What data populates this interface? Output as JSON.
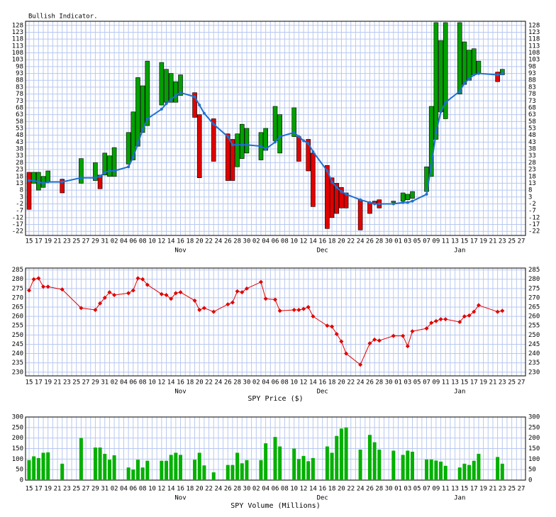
{
  "chart_data": [
    {
      "type": "candlestick",
      "title": "Bullish Indicator.",
      "categories": [
        "15",
        null,
        "17",
        null,
        "19",
        null,
        "21",
        null,
        "23",
        null,
        "25",
        null,
        "27",
        null,
        "29",
        null,
        "31",
        null,
        "02",
        null,
        "04",
        null,
        "06",
        null,
        "08",
        null,
        "10",
        null,
        "12",
        null,
        "14",
        null,
        "16",
        null,
        "18",
        null,
        "20",
        null,
        "22",
        null,
        "24",
        null,
        "26",
        null,
        "28",
        null,
        "30",
        null,
        "02",
        null,
        "04",
        null,
        "06",
        null,
        "08",
        null,
        "10",
        null,
        "12",
        null,
        "14",
        null,
        "16",
        null,
        "18",
        null,
        "20",
        null,
        "22",
        null,
        "24",
        null,
        "26",
        null,
        "28",
        null,
        "30",
        null,
        "01",
        null,
        "03",
        null,
        "05",
        null,
        "07",
        null,
        "09",
        null,
        "11",
        null,
        "13",
        null,
        "15",
        null,
        "17",
        null,
        "19",
        null,
        "21",
        null,
        "23",
        null,
        "25",
        null,
        "27"
      ],
      "months": [
        null,
        null,
        null,
        null,
        null,
        null,
        null,
        null,
        null,
        null,
        null,
        null,
        null,
        null,
        null,
        null,
        null,
        null,
        null,
        null,
        null,
        null,
        null,
        null,
        null,
        null,
        null,
        null,
        null,
        null,
        null,
        null,
        "Nov",
        null,
        null,
        null,
        null,
        null,
        null,
        null,
        null,
        null,
        null,
        null,
        null,
        null,
        null,
        null,
        null,
        null,
        null,
        null,
        null,
        null,
        null,
        null,
        null,
        null,
        null,
        null,
        null,
        null,
        "Dec",
        null,
        null,
        null,
        null,
        null,
        null,
        null,
        null,
        null,
        null,
        null,
        null,
        null,
        null,
        null,
        null,
        null,
        null,
        null,
        null,
        null,
        null,
        null,
        null,
        null,
        null,
        null,
        null,
        "Jan",
        null,
        null,
        null,
        null,
        null,
        null,
        null,
        null,
        null,
        null,
        null
      ],
      "open": [
        21,
        13,
        8,
        10,
        14,
        null,
        null,
        16,
        null,
        null,
        null,
        13,
        null,
        null,
        15,
        19,
        19,
        18,
        18,
        null,
        null,
        27,
        30,
        40,
        50,
        55,
        null,
        null,
        70,
        72,
        72,
        72,
        77,
        null,
        null,
        79,
        63,
        null,
        null,
        60,
        null,
        null,
        49,
        45,
        25,
        31,
        35,
        null,
        null,
        30,
        37,
        null,
        44,
        35,
        null,
        null,
        47,
        47,
        null,
        45,
        35,
        null,
        null,
        26,
        17,
        13,
        10,
        6,
        null,
        null,
        1,
        null,
        -1,
        0,
        1,
        null,
        null,
        -1,
        null,
        0,
        1,
        2,
        null,
        null,
        7,
        18,
        45,
        65,
        60,
        null,
        null,
        78,
        85,
        88,
        92,
        93,
        null,
        null,
        null,
        94,
        92,
        null,
        null,
        null,
        null
      ],
      "close": [
        -6,
        21,
        21,
        18,
        22,
        null,
        null,
        6,
        null,
        null,
        null,
        31,
        null,
        null,
        28,
        9,
        35,
        33,
        39,
        null,
        null,
        50,
        65,
        90,
        84,
        102,
        null,
        null,
        101,
        96,
        93,
        87,
        92,
        null,
        null,
        61,
        17,
        null,
        null,
        29,
        null,
        null,
        15,
        15,
        49,
        56,
        53,
        null,
        null,
        50,
        53,
        null,
        69,
        63,
        null,
        null,
        68,
        29,
        null,
        22,
        -4,
        null,
        null,
        -20,
        -12,
        -9,
        -5,
        -5,
        null,
        null,
        -21,
        null,
        -9,
        -2,
        -5,
        null,
        null,
        0,
        null,
        6,
        5,
        7,
        null,
        null,
        25,
        69,
        130,
        117,
        130,
        null,
        null,
        130,
        116,
        110,
        111,
        102,
        null,
        null,
        null,
        87,
        96,
        null,
        null,
        null,
        null
      ],
      "up_color": "#00a000",
      "down_color": "#e00000",
      "line": {
        "color": "#1f6fd0",
        "values": [
          15,
          15,
          14,
          13,
          14,
          null,
          null,
          14,
          null,
          null,
          null,
          17,
          null,
          null,
          17,
          18,
          21,
          22,
          22,
          null,
          null,
          25,
          32,
          42,
          52,
          60,
          null,
          null,
          67,
          71,
          74,
          77,
          79,
          null,
          null,
          76,
          70,
          64,
          null,
          56,
          null,
          null,
          47,
          41,
          41,
          41,
          41,
          null,
          null,
          40,
          38,
          null,
          43,
          47,
          null,
          null,
          50,
          47,
          44,
          42,
          36,
          null,
          null,
          22,
          14,
          10,
          7,
          5,
          null,
          null,
          1,
          null,
          -1,
          -2,
          -2,
          null,
          null,
          -2,
          null,
          -1,
          -1,
          0,
          null,
          null,
          5,
          26,
          50,
          65,
          72,
          null,
          null,
          80,
          86,
          89,
          92,
          93,
          null,
          null,
          null,
          92,
          93,
          null,
          null,
          null,
          null
        ]
      },
      "ylim": [
        -25,
        131
      ],
      "yticks": [
        -22,
        -17,
        -12,
        -7,
        -2,
        3,
        8,
        13,
        18,
        23,
        28,
        33,
        38,
        43,
        48,
        53,
        58,
        63,
        68,
        73,
        78,
        83,
        88,
        93,
        98,
        103,
        108,
        113,
        118,
        123,
        128
      ],
      "grid": true
    },
    {
      "type": "line",
      "x_label": "SPY Price ($)",
      "categories": [
        "15",
        null,
        "17",
        null,
        "19",
        null,
        "21",
        null,
        "23",
        null,
        "25",
        null,
        "27",
        null,
        "29",
        null,
        "31",
        null,
        "02",
        null,
        "04",
        null,
        "06",
        null,
        "08",
        null,
        "10",
        null,
        "12",
        null,
        "14",
        null,
        "16",
        null,
        "18",
        null,
        "20",
        null,
        "22",
        null,
        "24",
        null,
        "26",
        null,
        "28",
        null,
        "30",
        null,
        "02",
        null,
        "04",
        null,
        "06",
        null,
        "08",
        null,
        "10",
        null,
        "12",
        null,
        "14",
        null,
        "16",
        null,
        "18",
        null,
        "20",
        null,
        "22",
        null,
        "24",
        null,
        "26",
        null,
        "28",
        null,
        "30",
        null,
        "01",
        null,
        "03",
        null,
        "05",
        null,
        "07",
        null,
        "09",
        null,
        "11",
        null,
        "13",
        null,
        "15",
        null,
        "17",
        null,
        "19",
        null,
        "21",
        null,
        "23",
        null,
        "25",
        null,
        "27"
      ],
      "months": [
        null,
        null,
        null,
        null,
        null,
        null,
        null,
        null,
        null,
        null,
        null,
        null,
        null,
        null,
        null,
        null,
        null,
        null,
        null,
        null,
        null,
        null,
        null,
        null,
        null,
        null,
        null,
        null,
        null,
        null,
        null,
        null,
        "Nov",
        null,
        null,
        null,
        null,
        null,
        null,
        null,
        null,
        null,
        null,
        null,
        null,
        null,
        null,
        null,
        null,
        null,
        null,
        null,
        null,
        null,
        null,
        null,
        null,
        null,
        null,
        null,
        null,
        null,
        "Dec",
        null,
        null,
        null,
        null,
        null,
        null,
        null,
        null,
        null,
        null,
        null,
        null,
        null,
        null,
        null,
        null,
        null,
        null,
        null,
        null,
        null,
        null,
        null,
        null,
        null,
        null,
        null,
        null,
        "Jan",
        null,
        null,
        null,
        null,
        null,
        null,
        null,
        null,
        null,
        null,
        null
      ],
      "values": [
        274,
        280,
        280.5,
        276,
        276,
        null,
        null,
        274.5,
        null,
        null,
        null,
        264.5,
        null,
        null,
        263.5,
        267,
        270,
        273,
        271.5,
        null,
        null,
        272.5,
        274,
        280.5,
        280,
        277,
        null,
        null,
        272,
        271.5,
        269.5,
        272.5,
        273,
        null,
        null,
        268.5,
        263.5,
        264.5,
        null,
        262.5,
        null,
        null,
        266.5,
        267.5,
        273.5,
        273,
        275,
        null,
        null,
        278.5,
        269.5,
        null,
        269,
        263,
        null,
        null,
        263.5,
        263.5,
        264,
        265,
        260,
        null,
        null,
        255,
        254.5,
        250.5,
        246.5,
        240,
        null,
        null,
        234,
        null,
        245.5,
        247.5,
        247,
        null,
        null,
        249.5,
        null,
        249.5,
        244,
        252,
        null,
        null,
        253.5,
        256.5,
        257.5,
        258.5,
        258.5,
        null,
        null,
        257,
        260,
        260.5,
        262.5,
        266,
        null,
        null,
        null,
        262.5,
        263,
        null,
        null,
        null,
        null
      ],
      "color": "#e00000",
      "ylim": [
        228,
        286
      ],
      "yticks": [
        230,
        235,
        240,
        245,
        250,
        255,
        260,
        265,
        270,
        275,
        280,
        285
      ],
      "grid": true
    },
    {
      "type": "bar",
      "x_label": "SPY Volume (Millions)",
      "categories": [
        "15",
        null,
        "17",
        null,
        "19",
        null,
        "21",
        null,
        "23",
        null,
        "25",
        null,
        "27",
        null,
        "29",
        null,
        "31",
        null,
        "02",
        null,
        "04",
        null,
        "06",
        null,
        "08",
        null,
        "10",
        null,
        "12",
        null,
        "14",
        null,
        "16",
        null,
        "18",
        null,
        "20",
        null,
        "22",
        null,
        "24",
        null,
        "26",
        null,
        "28",
        null,
        "30",
        null,
        "02",
        null,
        "04",
        null,
        "06",
        null,
        "08",
        null,
        "10",
        null,
        "12",
        null,
        "14",
        null,
        "16",
        null,
        "18",
        null,
        "20",
        null,
        "22",
        null,
        "24",
        null,
        "26",
        null,
        "28",
        null,
        "30",
        null,
        "01",
        null,
        "03",
        null,
        "05",
        null,
        "07",
        null,
        "09",
        null,
        "11",
        null,
        "13",
        null,
        "15",
        null,
        "17",
        null,
        "19",
        null,
        "21",
        null,
        "23",
        null,
        "25",
        null,
        "27"
      ],
      "months": [
        null,
        null,
        null,
        null,
        null,
        null,
        null,
        null,
        null,
        null,
        null,
        null,
        null,
        null,
        null,
        null,
        null,
        null,
        null,
        null,
        null,
        null,
        null,
        null,
        null,
        null,
        null,
        null,
        null,
        null,
        null,
        null,
        "Nov",
        null,
        null,
        null,
        null,
        null,
        null,
        null,
        null,
        null,
        null,
        null,
        null,
        null,
        null,
        null,
        null,
        null,
        null,
        null,
        null,
        null,
        null,
        null,
        null,
        null,
        null,
        null,
        null,
        null,
        "Dec",
        null,
        null,
        null,
        null,
        null,
        null,
        null,
        null,
        null,
        null,
        null,
        null,
        null,
        null,
        null,
        null,
        null,
        null,
        null,
        null,
        null,
        null,
        null,
        null,
        null,
        null,
        null,
        null,
        "Jan",
        null,
        null,
        null,
        null,
        null,
        null,
        null,
        null,
        null,
        null,
        null
      ],
      "values": [
        95,
        113,
        105,
        130,
        132,
        null,
        null,
        78,
        null,
        null,
        null,
        200,
        null,
        null,
        155,
        155,
        125,
        97,
        118,
        null,
        null,
        60,
        50,
        97,
        60,
        92,
        null,
        null,
        92,
        92,
        120,
        130,
        120,
        null,
        null,
        97,
        130,
        70,
        null,
        37,
        null,
        null,
        72,
        72,
        130,
        80,
        95,
        null,
        null,
        95,
        175,
        null,
        205,
        160,
        null,
        null,
        150,
        100,
        115,
        90,
        105,
        null,
        null,
        160,
        130,
        210,
        245,
        250,
        null,
        null,
        145,
        null,
        215,
        180,
        145,
        null,
        null,
        140,
        null,
        120,
        140,
        135,
        null,
        null,
        98,
        98,
        93,
        88,
        68,
        null,
        null,
        60,
        78,
        72,
        92,
        125,
        null,
        null,
        null,
        110,
        78,
        null,
        null,
        null,
        null
      ],
      "color": "#00b000",
      "ylim": [
        0,
        300
      ],
      "yticks": [
        0,
        50,
        100,
        150,
        200,
        250,
        300
      ],
      "grid": true
    }
  ]
}
